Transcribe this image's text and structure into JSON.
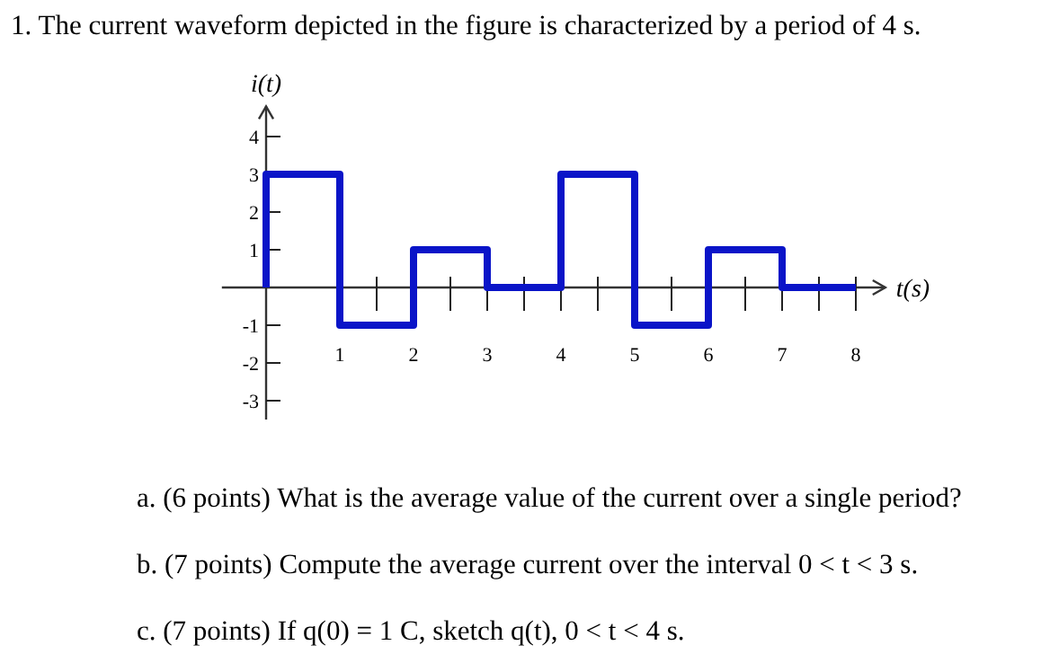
{
  "chart_data": {
    "type": "line",
    "title": "1. The current waveform depicted in the figure is characterized by a period of 4 s.",
    "ylabel": "i(t)",
    "xlabel": "t(s)",
    "x": [
      0,
      0,
      1,
      1,
      2,
      2,
      3,
      3,
      4,
      4,
      5,
      5,
      6,
      6,
      7,
      7,
      8
    ],
    "series": [
      {
        "color": "#0a14c8",
        "values": [
          0,
          3,
          3,
          -1,
          -1,
          1,
          1,
          0,
          0,
          3,
          3,
          -1,
          -1,
          1,
          1,
          0,
          0
        ]
      }
    ],
    "xlim": [
      -0.6,
      8.4
    ],
    "ylim": [
      -3.5,
      4.8
    ],
    "xticks": [
      1,
      2,
      3,
      4,
      5,
      6,
      7,
      8
    ],
    "yticks": [
      -3,
      -2,
      -1,
      1,
      2,
      3,
      4
    ],
    "grid": false,
    "line_style": "solid",
    "marker": "none",
    "annotations": [
      "a. (6 points) What is the average value of the current over a single period?",
      "b. (7 points) Compute the average current over the interval 0 < t < 3 s.",
      "c. (7 points) If q(0) = 1 C, sketch q(t), 0 < t < 4 s."
    ]
  }
}
